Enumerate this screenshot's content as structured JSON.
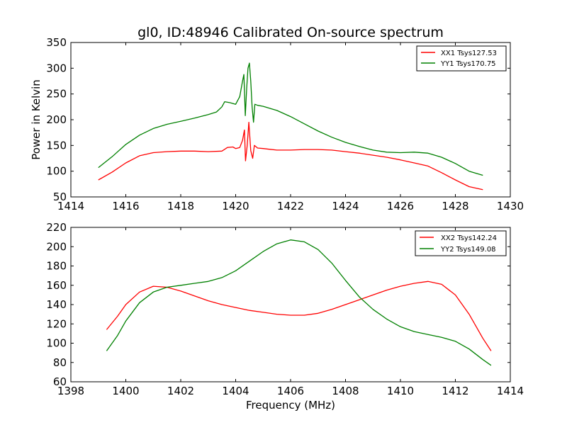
{
  "figure": {
    "title": "gl0, ID:48946 Calibrated On-source spectrum"
  },
  "chart_data": [
    {
      "type": "line",
      "title": "gl0, ID:48946 Calibrated On-source spectrum",
      "xlabel": "",
      "ylabel": "Power in Kelvin",
      "xlim": [
        1414,
        1430
      ],
      "ylim": [
        50,
        350
      ],
      "xticks": [
        1414,
        1416,
        1418,
        1420,
        1422,
        1424,
        1426,
        1428,
        1430
      ],
      "yticks": [
        50,
        100,
        150,
        200,
        250,
        300,
        350
      ],
      "legend_position": "top-right",
      "grid": false,
      "series": [
        {
          "name": "XX1 Tsys127.53",
          "color": "#ff0000",
          "points": [
            [
              1415.0,
              83
            ],
            [
              1415.5,
              98
            ],
            [
              1416.0,
              116
            ],
            [
              1416.5,
              130
            ],
            [
              1417.0,
              136
            ],
            [
              1417.5,
              138
            ],
            [
              1418.0,
              139
            ],
            [
              1418.5,
              139
            ],
            [
              1419.0,
              138
            ],
            [
              1419.5,
              139
            ],
            [
              1419.7,
              146
            ],
            [
              1419.9,
              147
            ],
            [
              1420.0,
              144
            ],
            [
              1420.15,
              146
            ],
            [
              1420.25,
              160
            ],
            [
              1420.32,
              180
            ],
            [
              1420.36,
              120
            ],
            [
              1420.42,
              150
            ],
            [
              1420.48,
              195
            ],
            [
              1420.55,
              140
            ],
            [
              1420.62,
              125
            ],
            [
              1420.68,
              150
            ],
            [
              1420.8,
              145
            ],
            [
              1421.0,
              144
            ],
            [
              1421.5,
              141
            ],
            [
              1422.0,
              141
            ],
            [
              1422.5,
              142
            ],
            [
              1423.0,
              142
            ],
            [
              1423.5,
              141
            ],
            [
              1424.0,
              138
            ],
            [
              1424.5,
              135
            ],
            [
              1425.0,
              131
            ],
            [
              1425.5,
              127
            ],
            [
              1426.0,
              122
            ],
            [
              1426.5,
              116
            ],
            [
              1427.0,
              110
            ],
            [
              1427.5,
              97
            ],
            [
              1428.0,
              83
            ],
            [
              1428.5,
              70
            ],
            [
              1429.0,
              64
            ]
          ]
        },
        {
          "name": "YY1 Tsys170.75",
          "color": "#008000",
          "points": [
            [
              1415.0,
              107
            ],
            [
              1415.5,
              128
            ],
            [
              1416.0,
              152
            ],
            [
              1416.5,
              170
            ],
            [
              1417.0,
              183
            ],
            [
              1417.5,
              191
            ],
            [
              1418.0,
              197
            ],
            [
              1418.5,
              203
            ],
            [
              1419.0,
              210
            ],
            [
              1419.3,
              215
            ],
            [
              1419.5,
              225
            ],
            [
              1419.6,
              235
            ],
            [
              1419.8,
              233
            ],
            [
              1420.0,
              230
            ],
            [
              1420.15,
              245
            ],
            [
              1420.25,
              275
            ],
            [
              1420.3,
              288
            ],
            [
              1420.35,
              208
            ],
            [
              1420.4,
              260
            ],
            [
              1420.45,
              300
            ],
            [
              1420.5,
              310
            ],
            [
              1420.55,
              275
            ],
            [
              1420.6,
              225
            ],
            [
              1420.65,
              195
            ],
            [
              1420.7,
              230
            ],
            [
              1420.8,
              228
            ],
            [
              1421.0,
              226
            ],
            [
              1421.5,
              218
            ],
            [
              1422.0,
              206
            ],
            [
              1422.5,
              192
            ],
            [
              1423.0,
              178
            ],
            [
              1423.5,
              166
            ],
            [
              1424.0,
              156
            ],
            [
              1424.5,
              148
            ],
            [
              1425.0,
              141
            ],
            [
              1425.5,
              137
            ],
            [
              1426.0,
              136
            ],
            [
              1426.5,
              137
            ],
            [
              1427.0,
              135
            ],
            [
              1427.5,
              127
            ],
            [
              1428.0,
              115
            ],
            [
              1428.5,
              100
            ],
            [
              1429.0,
              92
            ]
          ]
        }
      ]
    },
    {
      "type": "line",
      "title": "",
      "xlabel": "Frequency (MHz)",
      "ylabel": "",
      "xlim": [
        1398,
        1414
      ],
      "ylim": [
        60,
        220
      ],
      "xticks": [
        1398,
        1400,
        1402,
        1404,
        1406,
        1408,
        1410,
        1412,
        1414
      ],
      "yticks": [
        60,
        80,
        100,
        120,
        140,
        160,
        180,
        200,
        220
      ],
      "legend_position": "top-right",
      "grid": false,
      "series": [
        {
          "name": "XX2 Tsys142.24",
          "color": "#ff0000",
          "points": [
            [
              1399.3,
              114
            ],
            [
              1399.7,
              128
            ],
            [
              1400.0,
              140
            ],
            [
              1400.5,
              153
            ],
            [
              1401.0,
              159
            ],
            [
              1401.5,
              158
            ],
            [
              1402.0,
              154
            ],
            [
              1402.5,
              149
            ],
            [
              1403.0,
              144
            ],
            [
              1403.5,
              140
            ],
            [
              1404.0,
              137
            ],
            [
              1404.5,
              134
            ],
            [
              1405.0,
              132
            ],
            [
              1405.5,
              130
            ],
            [
              1406.0,
              129
            ],
            [
              1406.5,
              129
            ],
            [
              1407.0,
              131
            ],
            [
              1407.5,
              135
            ],
            [
              1408.0,
              140
            ],
            [
              1408.5,
              145
            ],
            [
              1409.0,
              150
            ],
            [
              1409.5,
              155
            ],
            [
              1410.0,
              159
            ],
            [
              1410.5,
              162
            ],
            [
              1411.0,
              164
            ],
            [
              1411.5,
              161
            ],
            [
              1412.0,
              150
            ],
            [
              1412.5,
              130
            ],
            [
              1413.0,
              105
            ],
            [
              1413.3,
              92
            ]
          ]
        },
        {
          "name": "YY2 Tsys149.08",
          "color": "#008000",
          "points": [
            [
              1399.3,
              92
            ],
            [
              1399.7,
              108
            ],
            [
              1400.0,
              123
            ],
            [
              1400.5,
              142
            ],
            [
              1401.0,
              153
            ],
            [
              1401.5,
              158
            ],
            [
              1402.0,
              160
            ],
            [
              1402.5,
              162
            ],
            [
              1403.0,
              164
            ],
            [
              1403.5,
              168
            ],
            [
              1404.0,
              175
            ],
            [
              1404.5,
              185
            ],
            [
              1405.0,
              195
            ],
            [
              1405.5,
              203
            ],
            [
              1406.0,
              207
            ],
            [
              1406.5,
              205
            ],
            [
              1407.0,
              197
            ],
            [
              1407.5,
              183
            ],
            [
              1408.0,
              165
            ],
            [
              1408.5,
              148
            ],
            [
              1409.0,
              135
            ],
            [
              1409.5,
              125
            ],
            [
              1410.0,
              117
            ],
            [
              1410.5,
              112
            ],
            [
              1411.0,
              109
            ],
            [
              1411.5,
              106
            ],
            [
              1412.0,
              102
            ],
            [
              1412.5,
              94
            ],
            [
              1413.0,
              83
            ],
            [
              1413.3,
              77
            ]
          ]
        }
      ]
    }
  ]
}
